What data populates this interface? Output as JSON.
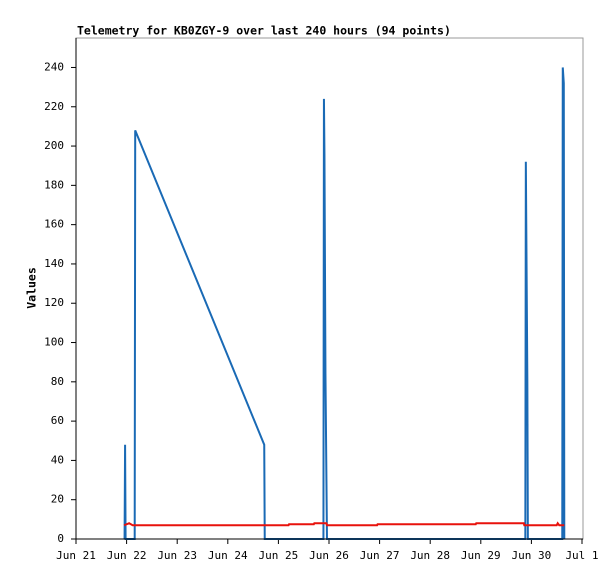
{
  "chart_data": {
    "type": "line",
    "title": "Telemetry for KB0ZGY-9 over last 240 hours (94 points)",
    "y_label": "Values",
    "xlim": [
      0,
      10
    ],
    "ylim": [
      0,
      255
    ],
    "xticks": [
      {
        "value": 0,
        "label": "Jun 21"
      },
      {
        "value": 1,
        "label": "Jun 22"
      },
      {
        "value": 2,
        "label": "Jun 23"
      },
      {
        "value": 3,
        "label": "Jun 24"
      },
      {
        "value": 4,
        "label": "Jun 25"
      },
      {
        "value": 5,
        "label": "Jun 26"
      },
      {
        "value": 6,
        "label": "Jun 27"
      },
      {
        "value": 7,
        "label": "Jun 28"
      },
      {
        "value": 8,
        "label": "Jun 29"
      },
      {
        "value": 9,
        "label": "Jun 30"
      },
      {
        "value": 10,
        "label": "Jul 1"
      }
    ],
    "yticks": [
      0,
      20,
      40,
      60,
      80,
      100,
      120,
      140,
      160,
      180,
      200,
      220,
      240
    ],
    "grid": false,
    "series": [
      {
        "color": "#1a6ab5",
        "x": [
          0.96,
          0.97,
          0.98,
          1.16,
          1.17,
          3.72,
          3.73,
          4.89,
          4.9,
          4.91,
          4.92,
          4.93,
          4.95,
          4.96,
          8.88,
          8.89,
          8.92,
          8.93,
          9.61,
          9.62,
          9.64,
          9.65
        ],
        "values": [
          0,
          48,
          0,
          0,
          208,
          48,
          0,
          0,
          224,
          196,
          140,
          84,
          28,
          0,
          0,
          192,
          80,
          0,
          0,
          240,
          232,
          0
        ]
      },
      {
        "color": "#e8120c",
        "x": [
          0.95,
          1.05,
          1.12,
          4.2,
          4.21,
          4.7,
          4.71,
          4.95,
          4.96,
          5.95,
          5.96,
          7.9,
          7.91,
          8.85,
          8.86,
          9.5,
          9.52,
          9.55,
          9.65
        ],
        "values": [
          7,
          8,
          7,
          7,
          7.5,
          7.5,
          8,
          8,
          7,
          7,
          7.5,
          7.5,
          8,
          8,
          7,
          7,
          8,
          7,
          7
        ]
      }
    ]
  }
}
